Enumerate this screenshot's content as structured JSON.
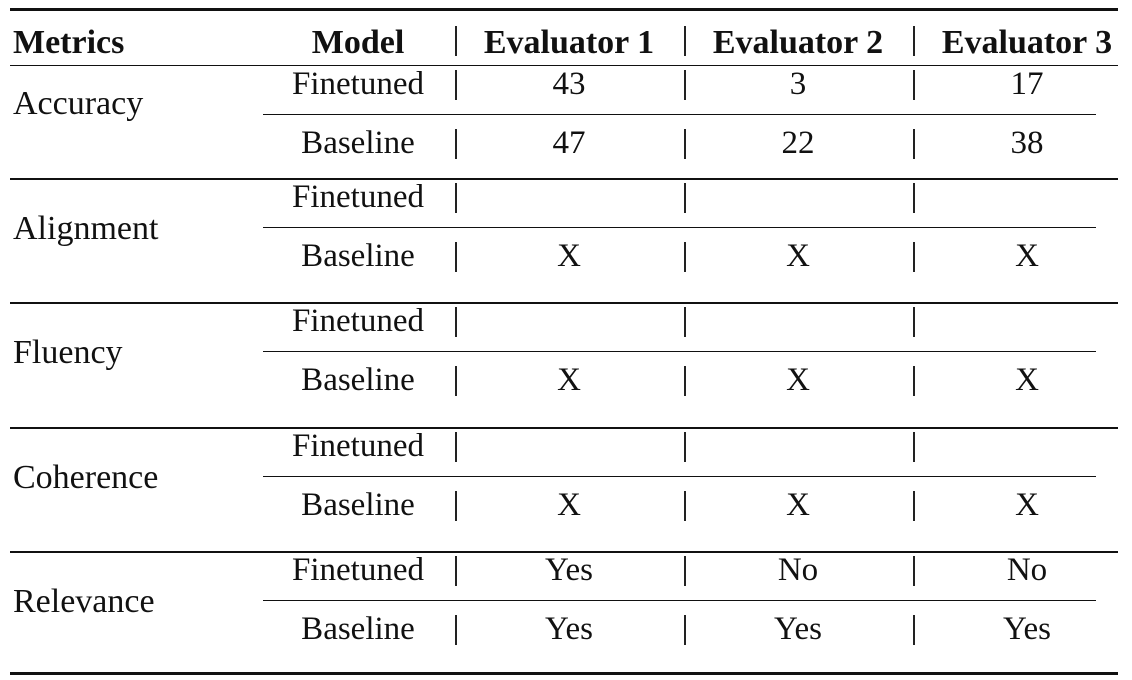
{
  "table": {
    "headers": [
      "Metrics",
      "Model",
      "Evaluator 1",
      "Evaluator 2",
      "Evaluator 3"
    ],
    "groups": [
      {
        "metric": "Accuracy",
        "rows": [
          {
            "model": "Finetuned",
            "values": [
              "43",
              "3",
              "17"
            ]
          },
          {
            "model": "Baseline",
            "values": [
              "47",
              "22",
              "38"
            ]
          }
        ]
      },
      {
        "metric": "Alignment",
        "rows": [
          {
            "model": "Finetuned",
            "values": [
              "",
              "",
              ""
            ]
          },
          {
            "model": "Baseline",
            "values": [
              "X",
              "X",
              "X"
            ]
          }
        ]
      },
      {
        "metric": "Fluency",
        "rows": [
          {
            "model": "Finetuned",
            "values": [
              "",
              "",
              ""
            ]
          },
          {
            "model": "Baseline",
            "values": [
              "X",
              "X",
              "X"
            ]
          }
        ]
      },
      {
        "metric": "Coherence",
        "rows": [
          {
            "model": "Finetuned",
            "values": [
              "",
              "",
              ""
            ]
          },
          {
            "model": "Baseline",
            "values": [
              "X",
              "X",
              "X"
            ]
          }
        ]
      },
      {
        "metric": "Relevance",
        "rows": [
          {
            "model": "Finetuned",
            "values": [
              "Yes",
              "No",
              "No"
            ]
          },
          {
            "model": "Baseline",
            "values": [
              "Yes",
              "Yes",
              "Yes"
            ]
          }
        ]
      }
    ]
  }
}
